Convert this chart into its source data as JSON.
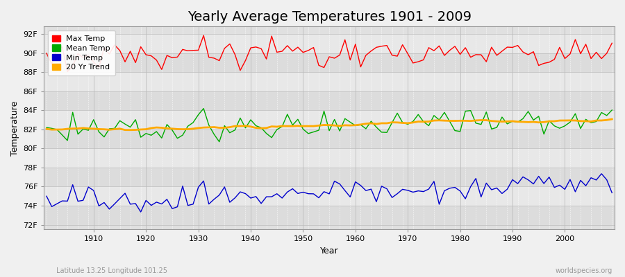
{
  "title": "Yearly Average Temperatures 1901 - 2009",
  "xlabel": "Year",
  "ylabel": "Temperature",
  "yticks": [
    72,
    74,
    76,
    78,
    80,
    82,
    84,
    86,
    88,
    90,
    92
  ],
  "ytick_labels": [
    "72F",
    "74F",
    "76F",
    "78F",
    "80F",
    "82F",
    "84F",
    "86F",
    "88F",
    "90F",
    "92F"
  ],
  "xticks": [
    1910,
    1920,
    1930,
    1940,
    1950,
    1960,
    1970,
    1980,
    1990,
    2000
  ],
  "ylim": [
    71.5,
    92.8
  ],
  "xlim": [
    1900.5,
    2009.5
  ],
  "legend_labels": [
    "Max Temp",
    "Mean Temp",
    "Min Temp",
    "20 Yr Trend"
  ],
  "line_colors": [
    "#ff0000",
    "#00aa00",
    "#0000cc",
    "#ffaa00"
  ],
  "band_colors": [
    "#dcdcdc",
    "#e8e8e8"
  ],
  "fig_bg": "#f0f0f0",
  "plot_bg": "#e0e0e0",
  "footer_left": "Latitude 13.25 Longitude 101.25",
  "footer_right": "worldspecies.org",
  "title_fontsize": 14,
  "max_seed": 101,
  "mean_seed": 202,
  "min_seed": 303
}
